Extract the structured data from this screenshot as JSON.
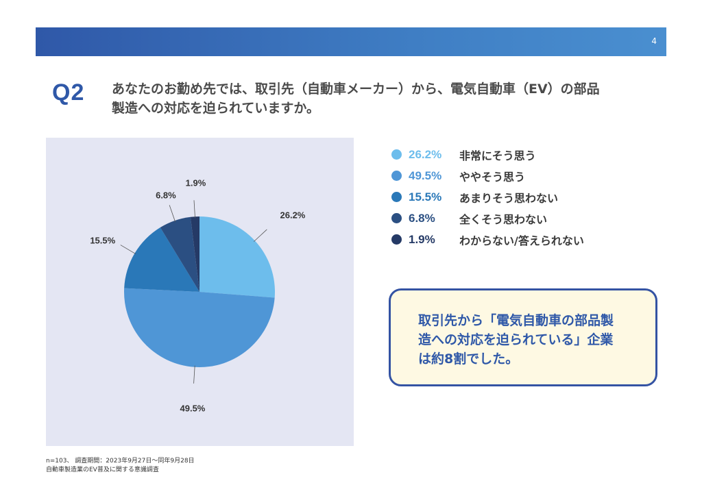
{
  "page_number": "4",
  "question": {
    "label": "Q2",
    "line1": "あなたのお勤め先では、取引先（自動車メーカー）から、電気自動車（EV）の部品",
    "line2": "製造への対応を迫られていますか。"
  },
  "chart_data": {
    "type": "pie",
    "start_angle_deg": 0,
    "direction": "clockwise",
    "slices": [
      {
        "label": "非常にそう思う",
        "value": 26.2,
        "display": "26.2%",
        "color": "#6dbdec"
      },
      {
        "label": "ややそう思う",
        "value": 49.5,
        "display": "49.5%",
        "color": "#4f96d6"
      },
      {
        "label": "あまりそう思わない",
        "value": 15.5,
        "display": "15.5%",
        "color": "#2a78b8"
      },
      {
        "label": "全くそう思わない",
        "value": 6.8,
        "display": "6.8%",
        "color": "#2b4f82"
      },
      {
        "label": "わからない/答えられない",
        "value": 1.9,
        "display": "1.9%",
        "color": "#253a66"
      }
    ],
    "legend_position": "right"
  },
  "summary": {
    "line1": "取引先から「電気自動車の部品製",
    "line2": "造への対応を迫られている」企業",
    "line3": "は約8割でした。"
  },
  "footnote": {
    "line1": "n=103、 調査期間：2023年9月27日～同年9月28日",
    "line2": "自動車製造業のEV普及に関する意識調査"
  }
}
